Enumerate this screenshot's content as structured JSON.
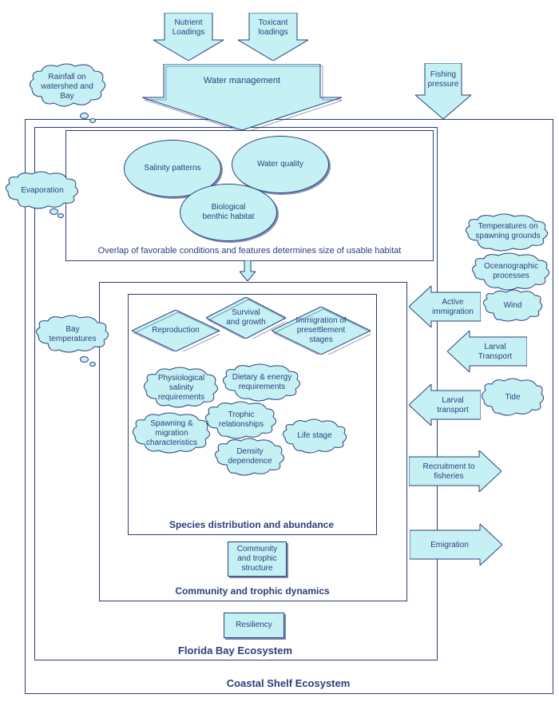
{
  "colors": {
    "fill": "#c5f1f5",
    "stroke": "#2c3e7a",
    "shadow": "rgba(44,62,122,0.6)",
    "background": "#ffffff"
  },
  "topInputs": {
    "nutrient": "Nutrient\nLoadings",
    "toxicant": "Toxicant\nloadings",
    "waterMgmt": "Water management",
    "fishing": "Fishing\npressure"
  },
  "leftClouds": {
    "rainfall": "Rainfall on\nwatershed and\nBay",
    "evaporation": "Evaporation",
    "bayTemp": "Bay\ntemperatures"
  },
  "rightClouds": {
    "tempSpawn": "Temperatures on\nspawning grounds",
    "oceanProc": "Oceanographic\nprocesses",
    "wind": "Wind",
    "tide": "Tide"
  },
  "rightArrows": {
    "activeImm": "Active\nimmigration",
    "larvalTransport": "Larval\nTransport",
    "larvalTransport2": "Larval\ntransport",
    "recruitment": "Recruitment to\nfisheries",
    "emigration": "Emigration"
  },
  "habitatBox": {
    "salinity": "Salinity patterns",
    "waterQuality": "Water  quality",
    "bioHabitat": "Biological\nbenthic habitat",
    "caption": "Overlap of favorable conditions and features determines size of usable habitat"
  },
  "diamonds": {
    "reproduction": "Reproduction",
    "survival": "Survival\nand growth",
    "immigration": "Immigration of\npresettlement\nstages"
  },
  "speciesClouds": {
    "physSalinity": "Physiological\nsalinity\nrequirements",
    "dietEnergy": "Dietary & energy\nrequirements",
    "trophic": "Trophic\nrelationships",
    "spawnMig": "Spawning &\nmigration\ncharacteristics",
    "density": "Density\ndependence",
    "lifeStage": "Life stage"
  },
  "innerLabels": {
    "species": "Species distribution and abundance",
    "community": "Community and trophic dynamics",
    "florida": "Florida Bay Ecosystem",
    "coastal": "Coastal Shelf Ecosystem"
  },
  "rectBoxes": {
    "commTrophic": "Community\nand trophic\nstructure",
    "resiliency": "Resiliency"
  }
}
